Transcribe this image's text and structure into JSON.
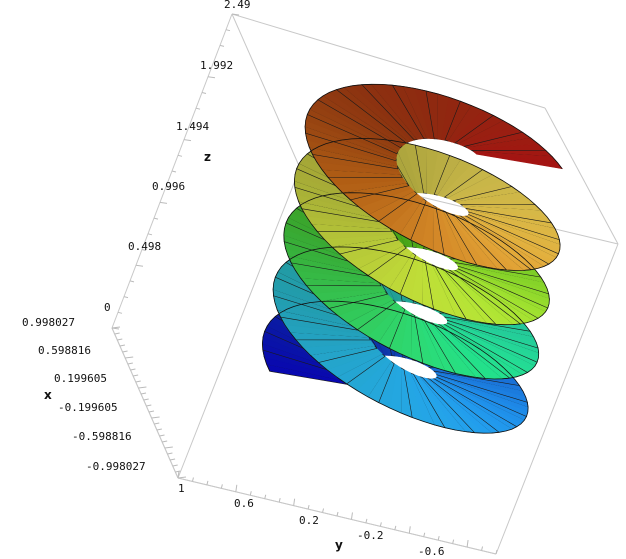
{
  "chart_data": {
    "type": "surface3d",
    "description_text": "",
    "axes": {
      "z": {
        "label": "z",
        "range": [
          0,
          2.49
        ],
        "ticks": [
          "2.49",
          "1.992",
          "1.494",
          "0.996",
          "0.498",
          "0"
        ]
      },
      "x": {
        "label": "x",
        "range": [
          -0.998027,
          0.998027
        ],
        "ticks": [
          "0.998027",
          "0.598816",
          "0.199605",
          "-0.199605",
          "-0.598816",
          "-0.998027"
        ]
      },
      "y": {
        "label": "y",
        "range": [
          -0.8,
          1
        ],
        "ticks": [
          "1",
          "0.6",
          "0.2",
          "-0.2",
          "-0.6"
        ]
      }
    },
    "surface": {
      "kind": "helicoid",
      "turns": 4.5,
      "inner_radius": 0.3,
      "outer_radius": 1.0,
      "z_range": [
        0,
        2.49
      ],
      "colormap": [
        "#0a0adc",
        "#1f8ff0",
        "#2fd6e0",
        "#23e08a",
        "#5fe020",
        "#c8e63a",
        "#f5e05a",
        "#d07018",
        "#b41414"
      ]
    }
  }
}
